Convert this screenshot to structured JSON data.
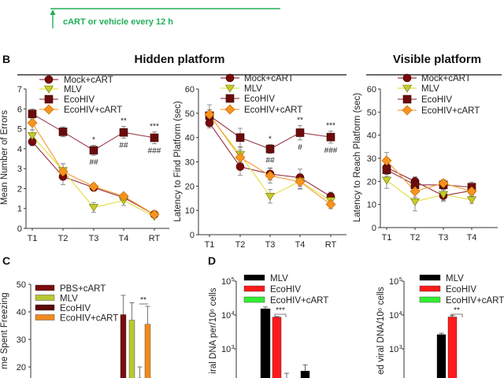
{
  "timeline": {
    "label": "cART or vehicle every 12 h",
    "color": "#22b05a"
  },
  "panels": {
    "B": "B",
    "C": "C",
    "D": "D"
  },
  "headers": {
    "hidden": "Hidden platform",
    "visible": "Visible platform"
  },
  "chart_data": [
    {
      "type": "line",
      "ylabel": "Mean Number of Errors",
      "categories": [
        "T1",
        "T2",
        "T3",
        "T4",
        "RT"
      ],
      "ylim": [
        0,
        7
      ],
      "yticks": [
        0,
        1,
        2,
        3,
        4,
        5,
        6,
        7
      ],
      "series": [
        {
          "name": "Mock+cART",
          "marker": "circle",
          "color": "#7a0a0a",
          "line": "#9a3a48",
          "values": [
            4.35,
            2.6,
            2.05,
            1.55,
            0.7
          ],
          "errors": [
            0.2,
            0.4,
            0.1,
            0.1,
            0.05
          ]
        },
        {
          "name": "MLV",
          "marker": "triangle-down",
          "color": "#c4cc2c",
          "line": "#e2e24a",
          "values": [
            4.65,
            2.9,
            1.05,
            1.4,
            0.6
          ],
          "errors": [
            0.3,
            0.35,
            0.25,
            0.25,
            0.05
          ]
        },
        {
          "name": "EcoHIV",
          "marker": "square",
          "color": "#6b0c0c",
          "line": "#a04a58",
          "values": [
            5.75,
            4.85,
            3.92,
            4.82,
            4.55
          ],
          "errors": [
            0.25,
            0.25,
            0.25,
            0.3,
            0.3
          ]
        },
        {
          "name": "EcoHIV+cART",
          "marker": "diamond",
          "color": "#f7941d",
          "line": "#f5a040",
          "values": [
            5.3,
            2.85,
            2.1,
            1.62,
            0.7
          ],
          "errors": [
            0.35,
            0.4,
            0.15,
            0.1,
            0.05
          ]
        }
      ],
      "annotations": [
        {
          "category": "T3",
          "above": "*",
          "below": "##"
        },
        {
          "category": "T4",
          "above": "**",
          "below": "##"
        },
        {
          "category": "RT",
          "above": "***",
          "below": "###"
        }
      ]
    },
    {
      "type": "line",
      "ylabel": "Latency to Find Platform (sec)",
      "categories": [
        "T1",
        "T2",
        "T3",
        "T4",
        "RT"
      ],
      "ylim": [
        0,
        60
      ],
      "yticks": [
        0,
        10,
        20,
        30,
        40,
        50,
        60
      ],
      "series": [
        {
          "name": "Mock+cART",
          "marker": "circle",
          "color": "#7a0a0a",
          "line": "#9a3a48",
          "values": [
            46,
            28,
            25,
            23.5,
            15.7
          ],
          "errors": [
            2,
            3.5,
            2.5,
            3.5,
            1.8
          ]
        },
        {
          "name": "MLV",
          "marker": "triangle-down",
          "color": "#c4cc2c",
          "line": "#e2e24a",
          "values": [
            49,
            33,
            15.8,
            22,
            14
          ],
          "errors": [
            2.5,
            3,
            2.8,
            3,
            2
          ]
        },
        {
          "name": "EcoHIV",
          "marker": "square",
          "color": "#6b0c0c",
          "line": "#a04a58",
          "values": [
            49,
            40,
            35.3,
            42,
            40.2
          ],
          "errors": [
            2.5,
            3.8,
            1.8,
            3,
            2.5
          ]
        },
        {
          "name": "EcoHIV+cART",
          "marker": "diamond",
          "color": "#f7941d",
          "line": "#f5a040",
          "values": [
            49.5,
            31.8,
            24.3,
            21.8,
            12.5
          ],
          "errors": [
            4,
            3,
            3,
            3,
            1.8
          ]
        }
      ],
      "annotations": [
        {
          "category": "T3",
          "above": "*",
          "below": "##"
        },
        {
          "category": "T4",
          "above": "**",
          "below": "#"
        },
        {
          "category": "RT",
          "above": "***",
          "below": "###"
        }
      ]
    },
    {
      "type": "line",
      "ylabel": "Latency to Reach Platform (sec)",
      "categories": [
        "T1",
        "T2",
        "T3",
        "T4"
      ],
      "ylim": [
        0,
        60
      ],
      "yticks": [
        0,
        10,
        20,
        30,
        40,
        50,
        60
      ],
      "series": [
        {
          "name": "Mock+cART",
          "marker": "circle",
          "color": "#7a0a0a",
          "line": "#9a3a48",
          "values": [
            26,
            20,
            13.8,
            16
          ],
          "errors": [
            3,
            2,
            2.5,
            2
          ]
        },
        {
          "name": "MLV",
          "marker": "triangle-down",
          "color": "#c4cc2c",
          "line": "#e2e24a",
          "values": [
            20.5,
            11.2,
            14.3,
            12
          ],
          "errors": [
            3.5,
            4,
            2.5,
            1.5
          ]
        },
        {
          "name": "EcoHIV",
          "marker": "square",
          "color": "#6b0c0c",
          "line": "#a04a58",
          "values": [
            25,
            18.5,
            18.5,
            17.5
          ],
          "errors": [
            3,
            2.5,
            2,
            2.2
          ]
        },
        {
          "name": "EcoHIV+cART",
          "marker": "diamond",
          "color": "#f7941d",
          "line": "#f5a040",
          "values": [
            29,
            15.7,
            19.2,
            15.7
          ],
          "errors": [
            3.5,
            2.5,
            1.5,
            2.5
          ]
        }
      ],
      "annotations": []
    },
    {
      "type": "bar",
      "ylabel": "me Spent Freezing",
      "ylim": [
        15,
        50
      ],
      "yticks": [
        20,
        30,
        40,
        50
      ],
      "series": [
        {
          "name": "PBS+cART",
          "color": "#7b0c0c",
          "value": 39,
          "error": 7
        },
        {
          "name": "MLV",
          "color": "#b8c832",
          "value": 37,
          "error": 6.3
        },
        {
          "name": "EcoHIV",
          "color": "#5a0808",
          "value": 16,
          "error": 4
        },
        {
          "name": "EcoHIV+cART",
          "color": "#f08a20",
          "value": 35.5,
          "error": 6.5
        }
      ],
      "annotations": [
        {
          "between": [
            "EcoHIV",
            "EcoHIV+cART"
          ],
          "label": "**"
        }
      ]
    },
    {
      "type": "bar",
      "yscale": "log",
      "ylabel": "iral DNA per/10⁶ cells",
      "yticks": [
        {
          "base": "10",
          "exp": "3"
        },
        {
          "base": "10",
          "exp": "4"
        },
        {
          "base": "10",
          "exp": "5"
        }
      ],
      "legend": [
        {
          "name": "MLV",
          "color": "#000000"
        },
        {
          "name": "EcoHIV",
          "color": "#ff1a1a"
        },
        {
          "name": "EcoHIV+cART",
          "color": "#33ee33"
        }
      ],
      "bars": [
        {
          "series": "MLV",
          "color": "#000000",
          "value": 14500,
          "error": 1800
        },
        {
          "series": "EcoHIV",
          "color": "#ff1a1a",
          "value": 8200,
          "error": 300
        },
        {
          "series": "MLV",
          "color": "#000000",
          "value": 210,
          "error": 110
        }
      ],
      "annotations": [
        {
          "between": [
            "EcoHIV",
            "EcoHIV+cART"
          ],
          "label": "***"
        }
      ]
    },
    {
      "type": "bar",
      "yscale": "log",
      "ylabel": "ed viral DNA/10⁶ cells",
      "yticks": [
        {
          "base": "10",
          "exp": "3"
        },
        {
          "base": "10",
          "exp": "4"
        },
        {
          "base": "10",
          "exp": "5"
        }
      ],
      "legend": [
        {
          "name": "MLV",
          "color": "#000000"
        },
        {
          "name": "EcoHIV",
          "color": "#ff1a1a"
        },
        {
          "name": "EcoHIV+cART",
          "color": "#33ee33"
        }
      ],
      "bars": [
        {
          "series": "MLV",
          "color": "#000000",
          "value": 2500,
          "error": 250
        },
        {
          "series": "EcoHIV",
          "color": "#ff1a1a",
          "value": 8300,
          "error": 1000
        }
      ],
      "annotations": [
        {
          "between": [
            "EcoHIV",
            "EcoHIV+cART"
          ],
          "label": "**"
        }
      ]
    }
  ]
}
